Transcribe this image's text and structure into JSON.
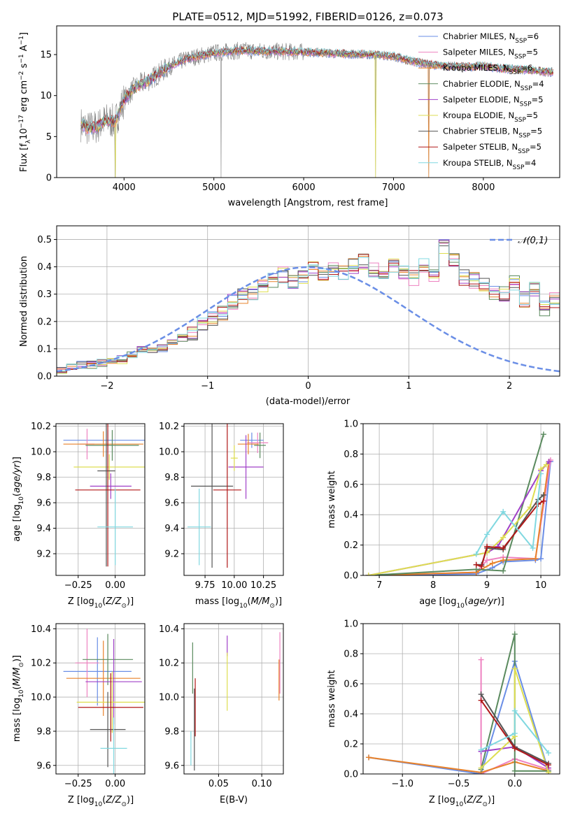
{
  "figure_title": "PLATE=0512, MJD=51992, FIBERID=0126, z=0.073",
  "colors": {
    "Chabrier MILES": "#6a8ee6",
    "Salpeter MILES": "#ee82c0",
    "Kroupa MILES": "#e8822a",
    "Chabrier ELODIE": "#5a8a5e",
    "Salpeter ELODIE": "#a040c8",
    "Kroupa ELODIE": "#dede50",
    "Chabrier STELIB": "#555555",
    "Salpeter STELIB": "#b01818",
    "Kroupa STELIB": "#80d8e0",
    "data": "#808080"
  },
  "chart_data": [
    {
      "type": "line",
      "title": "PLATE=0512, MJD=51992, FIBERID=0126, z=0.073",
      "xlabel": "wavelength [Angstrom, rest frame]",
      "ylabel_parts": [
        "Flux [f",
        "λ",
        "10",
        "−17",
        " erg cm",
        "−2",
        " s",
        "−1",
        " A",
        "−1",
        "]"
      ],
      "xlim": [
        3250,
        8850
      ],
      "ylim": [
        0,
        18.5
      ],
      "xticks": [
        4000,
        5000,
        6000,
        7000,
        8000
      ],
      "yticks": [
        0,
        5,
        10,
        15
      ],
      "grid": false,
      "legend_position": "right",
      "legend": [
        {
          "model": "Chabrier MILES",
          "nssp": "6"
        },
        {
          "model": "Salpeter MILES",
          "nssp": "5"
        },
        {
          "model": "Kroupa MILES",
          "nssp": "6"
        },
        {
          "model": "Chabrier ELODIE",
          "nssp": "4"
        },
        {
          "model": "Salpeter ELODIE",
          "nssp": "5"
        },
        {
          "model": "Kroupa ELODIE",
          "nssp": "5"
        },
        {
          "model": "Chabrier STELIB",
          "nssp": "5"
        },
        {
          "model": "Salpeter STELIB",
          "nssp": "5"
        },
        {
          "model": "Kroupa STELIB",
          "nssp": "4"
        }
      ],
      "continuum": {
        "wavelength": [
          3520,
          3600,
          3700,
          3800,
          3900,
          4000,
          4100,
          4200,
          4300,
          4400,
          4500,
          4700,
          5000,
          5300,
          5600,
          6000,
          6400,
          6800,
          7000,
          7200,
          7400,
          7600,
          7800,
          8000,
          8200,
          8400,
          8600,
          8780
        ],
        "flux": [
          6.5,
          6.0,
          6.2,
          7.0,
          6.8,
          9.5,
          10.8,
          11.5,
          12.0,
          12.8,
          13.5,
          14.5,
          15.2,
          15.5,
          15.4,
          15.3,
          15.1,
          15.0,
          14.8,
          14.2,
          13.8,
          13.6,
          13.5,
          13.6,
          13.3,
          13.2,
          13.0,
          12.8
        ]
      },
      "data_dropouts": [
        3900,
        5080,
        6800,
        7390
      ],
      "model_dropouts": [
        {
          "wavelength": 3900,
          "model": "Kroupa ELODIE"
        },
        {
          "wavelength": 6800,
          "model": "Kroupa ELODIE"
        },
        {
          "wavelength": 7390,
          "model": "Kroupa MILES"
        }
      ]
    },
    {
      "type": "histogram",
      "xlabel": "(data-model)/error",
      "ylabel": "Normed distribution",
      "xlim": [
        -2.5,
        2.5
      ],
      "ylim": [
        0,
        0.55
      ],
      "xticks": [
        -2,
        -1,
        0,
        1,
        2
      ],
      "yticks": [
        0.0,
        0.1,
        0.2,
        0.3,
        0.4,
        0.5
      ],
      "grid": true,
      "legend": "𝒩(0,1)",
      "reference_curve": "normal(0,1)",
      "bin_width": 0.1,
      "bin_start": -2.5,
      "heights": [
        0.02,
        0.03,
        0.04,
        0.04,
        0.05,
        0.05,
        0.06,
        0.08,
        0.1,
        0.09,
        0.1,
        0.12,
        0.14,
        0.16,
        0.19,
        0.21,
        0.23,
        0.27,
        0.29,
        0.3,
        0.33,
        0.35,
        0.37,
        0.34,
        0.36,
        0.39,
        0.37,
        0.39,
        0.38,
        0.4,
        0.42,
        0.39,
        0.38,
        0.4,
        0.38,
        0.36,
        0.4,
        0.37,
        0.47,
        0.42,
        0.36,
        0.35,
        0.33,
        0.31,
        0.3,
        0.34,
        0.28,
        0.32,
        0.25,
        0.28,
        0.24,
        0.22,
        0.2,
        0.18,
        0.17,
        0.13,
        0.12,
        0.1,
        0.09,
        0.1,
        0.08,
        0.07,
        0.06,
        0.05,
        0.05,
        0.04,
        0.03,
        0.03,
        0.02,
        0.02
      ]
    },
    {
      "type": "errorbar",
      "xlabel": "Z [log10(Z/Z⊙)]",
      "ylabel": "age  [log10(age/yr)]",
      "xlim": [
        -0.4,
        0.2
      ],
      "ylim": [
        9.03,
        10.22
      ],
      "xticks": [
        -0.25,
        0.0
      ],
      "xtick_labels": [
        "−0.25",
        "0.00"
      ],
      "yticks": [
        9.2,
        9.4,
        9.6,
        9.8,
        10.0,
        10.2
      ],
      "points": [
        {
          "model": "Chabrier MILES",
          "x": -0.05,
          "xerr": 0.3,
          "y": 10.09,
          "yerr": 0.08
        },
        {
          "model": "Salpeter MILES",
          "x": -0.19,
          "xerr": 0.05,
          "y": 10.06,
          "yerr": 0.12
        },
        {
          "model": "Kroupa MILES",
          "x": -0.08,
          "xerr": 0.27,
          "y": 10.06,
          "yerr": 0.1
        },
        {
          "model": "Chabrier ELODIE",
          "x": -0.02,
          "xerr": 0.18,
          "y": 10.05,
          "yerr": 0.12
        },
        {
          "model": "Salpeter ELODIE",
          "x": -0.03,
          "xerr": 0.14,
          "y": 9.73,
          "yerr": 0.1
        },
        {
          "model": "Kroupa ELODIE",
          "x": -0.04,
          "xerr": 0.24,
          "y": 9.88,
          "yerr": 0.1
        },
        {
          "model": "Chabrier STELIB",
          "x": -0.06,
          "xerr": 0.06,
          "y": 9.85,
          "yerr": 0.75
        },
        {
          "model": "Salpeter STELIB",
          "x": -0.05,
          "xerr": 0.22,
          "y": 9.7,
          "yerr": 0.6
        },
        {
          "model": "Kroupa STELIB",
          "x": 0.0,
          "xerr": 0.12,
          "y": 9.41,
          "yerr": 0.3
        }
      ]
    },
    {
      "type": "errorbar",
      "xlabel": "mass [log10(M/M⊙)]",
      "xlim": [
        9.57,
        10.42
      ],
      "ylim": [
        9.03,
        10.22
      ],
      "xticks": [
        9.75,
        10.0,
        10.25
      ],
      "xtick_labels": [
        "9.75",
        "10.00",
        "10.25"
      ],
      "yticks": [
        9.2,
        9.4,
        9.6,
        9.8,
        10.0,
        10.2
      ],
      "points": [
        {
          "model": "Chabrier MILES",
          "x": 10.15,
          "xerr": 0.1,
          "y": 10.09,
          "yerr": 0.06
        },
        {
          "model": "Salpeter MILES",
          "x": 10.2,
          "xerr": 0.09,
          "y": 10.07,
          "yerr": 0.08
        },
        {
          "model": "Kroupa MILES",
          "x": 10.12,
          "xerr": 0.09,
          "y": 10.06,
          "yerr": 0.08
        },
        {
          "model": "Chabrier ELODIE",
          "x": 10.22,
          "xerr": 0.05,
          "y": 10.05,
          "yerr": 0.1
        },
        {
          "model": "Salpeter ELODIE",
          "x": 10.1,
          "xerr": 0.15,
          "y": 9.88,
          "yerr": 0.25
        },
        {
          "model": "Kroupa ELODIE",
          "x": 10.0,
          "xerr": 0.03,
          "y": 9.95,
          "yerr": 0.1
        },
        {
          "model": "Chabrier STELIB",
          "x": 9.81,
          "xerr": 0.18,
          "y": 9.73,
          "yerr": 0.64
        },
        {
          "model": "Salpeter STELIB",
          "x": 9.94,
          "xerr": 0.12,
          "y": 9.7,
          "yerr": 0.61
        },
        {
          "model": "Kroupa STELIB",
          "x": 9.7,
          "xerr": 0.1,
          "y": 9.41,
          "yerr": 0.3
        }
      ]
    },
    {
      "type": "line",
      "xlabel": "age  [log10(age/yr)]",
      "ylabel": "mass weight",
      "xlim": [
        6.7,
        10.35
      ],
      "ylim": [
        0,
        1.0
      ],
      "xticks": [
        7,
        8,
        9,
        10
      ],
      "yticks": [
        0.0,
        0.2,
        0.4,
        0.6,
        0.8,
        1.0
      ],
      "grid": true,
      "series": [
        {
          "model": "Chabrier MILES",
          "x": [
            6.8,
            8.8,
            9.1,
            9.3,
            9.9,
            10.0,
            10.18
          ],
          "y": [
            0.0,
            0.01,
            0.05,
            0.09,
            0.1,
            0.11,
            0.75
          ]
        },
        {
          "model": "Salpeter MILES",
          "x": [
            6.8,
            8.8,
            9.0,
            9.3,
            9.9,
            10.18
          ],
          "y": [
            0.0,
            0.02,
            0.1,
            0.12,
            0.11,
            0.76
          ]
        },
        {
          "model": "Kroupa MILES",
          "x": [
            6.8,
            8.8,
            9.1,
            9.3,
            9.9,
            10.15
          ],
          "y": [
            0.0,
            0.02,
            0.08,
            0.1,
            0.11,
            0.75
          ]
        },
        {
          "model": "Chabrier ELODIE",
          "x": [
            6.8,
            8.8,
            9.3,
            10.05
          ],
          "y": [
            0.0,
            0.04,
            0.03,
            0.93
          ]
        },
        {
          "model": "Salpeter ELODIE",
          "x": [
            6.8,
            9.0,
            9.2,
            10.0,
            10.15
          ],
          "y": [
            0.0,
            0.15,
            0.19,
            0.69,
            0.75
          ]
        },
        {
          "model": "Kroupa ELODIE",
          "x": [
            6.8,
            9.0,
            9.3,
            9.8,
            10.0,
            10.1
          ],
          "y": [
            0.0,
            0.15,
            0.25,
            0.45,
            0.7,
            0.73
          ]
        },
        {
          "model": "Chabrier STELIB",
          "x": [
            8.8,
            8.9,
            9.0,
            9.3,
            9.95,
            10.05
          ],
          "y": [
            0.07,
            0.07,
            0.18,
            0.17,
            0.5,
            0.53
          ]
        },
        {
          "model": "Salpeter STELIB",
          "x": [
            8.8,
            8.9,
            9.0,
            9.3,
            9.95,
            10.05
          ],
          "y": [
            0.07,
            0.06,
            0.19,
            0.18,
            0.47,
            0.49
          ]
        },
        {
          "model": "Kroupa STELIB",
          "x": [
            8.8,
            9.0,
            9.3,
            9.85,
            10.0
          ],
          "y": [
            0.14,
            0.27,
            0.42,
            0.18,
            0.67
          ]
        }
      ]
    },
    {
      "type": "errorbar",
      "xlabel": "Z [log10(Z/Z⊙)]",
      "ylabel": "mass [log10(M/M⊙)]",
      "xlim": [
        -0.4,
        0.2
      ],
      "ylim": [
        9.55,
        10.43
      ],
      "xticks": [
        -0.25,
        0.0
      ],
      "xtick_labels": [
        "−0.25",
        "0.00"
      ],
      "yticks": [
        9.6,
        9.8,
        10.0,
        10.2,
        10.4
      ],
      "points": [
        {
          "model": "Chabrier MILES",
          "x": -0.12,
          "xerr": 0.23,
          "y": 10.15,
          "yerr": 0.2
        },
        {
          "model": "Salpeter MILES",
          "x": -0.19,
          "xerr": 0.08,
          "y": 10.2,
          "yerr": 0.2
        },
        {
          "model": "Kroupa MILES",
          "x": -0.08,
          "xerr": 0.25,
          "y": 10.11,
          "yerr": 0.22
        },
        {
          "model": "Chabrier ELODIE",
          "x": -0.05,
          "xerr": 0.17,
          "y": 10.22,
          "yerr": 0.15
        },
        {
          "model": "Salpeter ELODIE",
          "x": -0.01,
          "xerr": 0.19,
          "y": 10.09,
          "yerr": 0.25
        },
        {
          "model": "Kroupa ELODIE",
          "x": -0.02,
          "xerr": 0.24,
          "y": 9.97,
          "yerr": 0.18
        },
        {
          "model": "Chabrier STELIB",
          "x": -0.05,
          "xerr": 0.12,
          "y": 9.81,
          "yerr": 0.22
        },
        {
          "model": "Salpeter STELIB",
          "x": -0.03,
          "xerr": 0.22,
          "y": 9.94,
          "yerr": 0.2
        },
        {
          "model": "Kroupa STELIB",
          "x": -0.01,
          "xerr": 0.09,
          "y": 9.7,
          "yerr": 0.18
        }
      ]
    },
    {
      "type": "errorbar",
      "xlabel": "E(B-V)",
      "xlim": [
        0.01,
        0.125
      ],
      "ylim": [
        9.55,
        10.43
      ],
      "xticks": [
        0.05,
        0.1
      ],
      "xtick_labels": [
        "0.05",
        "0.10"
      ],
      "yticks": [
        9.6,
        9.8,
        10.0,
        10.2,
        10.4
      ],
      "points": [
        {
          "model": "Chabrier ELODIE",
          "x": 0.02,
          "xerr": 0,
          "y": 10.17,
          "yerr": 0.15
        },
        {
          "model": "Chabrier STELIB",
          "x": 0.022,
          "xerr": 0,
          "y": 9.81,
          "yerr": 0.24
        },
        {
          "model": "Salpeter STELIB",
          "x": 0.023,
          "xerr": 0,
          "y": 9.94,
          "yerr": 0.17
        },
        {
          "model": "Kroupa STELIB",
          "x": 0.018,
          "xerr": 0,
          "y": 9.7,
          "yerr": 0.1
        },
        {
          "model": "Salpeter ELODIE",
          "x": 0.06,
          "xerr": 0,
          "y": 10.3,
          "yerr": 0.06
        },
        {
          "model": "Kroupa ELODIE",
          "x": 0.06,
          "xerr": 0,
          "y": 10.09,
          "yerr": 0.17
        },
        {
          "model": "Kroupa MILES",
          "x": 0.12,
          "xerr": 0,
          "y": 10.1,
          "yerr": 0.12
        },
        {
          "model": "Salpeter MILES",
          "x": 0.121,
          "xerr": 0,
          "y": 10.2,
          "yerr": 0.18
        }
      ]
    },
    {
      "type": "line",
      "xlabel": "Z [log10(Z/Z⊙)]",
      "ylabel": "mass weight",
      "xlim": [
        -1.35,
        0.4
      ],
      "ylim": [
        0,
        1.0
      ],
      "xticks": [
        -1.0,
        -0.5,
        0.0
      ],
      "xtick_labels": [
        "−1.0",
        "−0.5",
        "0.0"
      ],
      "yticks": [
        0.0,
        0.2,
        0.4,
        0.6,
        0.8,
        1.0
      ],
      "grid": true,
      "series": [
        {
          "model": "Chabrier MILES",
          "x": [
            -1.3,
            -0.3,
            0.0,
            0.3
          ],
          "y": [
            0.11,
            0.0,
            0.75,
            0.02
          ]
        },
        {
          "model": "Salpeter MILES",
          "x": [
            -0.3,
            -0.3,
            0.0,
            0.3
          ],
          "y": [
            0.76,
            0.0,
            0.1,
            0.03
          ]
        },
        {
          "model": "Kroupa MILES",
          "x": [
            -1.3,
            -0.3,
            0.0,
            0.3
          ],
          "y": [
            0.11,
            0.01,
            0.08,
            0.02
          ]
        },
        {
          "model": "Chabrier ELODIE",
          "x": [
            -0.3,
            0.0,
            0.0,
            0.3
          ],
          "y": [
            0.03,
            0.93,
            0.02,
            0.02
          ]
        },
        {
          "model": "Salpeter ELODIE",
          "x": [
            -0.3,
            0.0,
            0.3
          ],
          "y": [
            0.15,
            0.18,
            0.04
          ]
        },
        {
          "model": "Kroupa ELODIE",
          "x": [
            -0.3,
            0.0,
            0.0,
            0.3
          ],
          "y": [
            0.04,
            0.25,
            0.7,
            0.01
          ]
        },
        {
          "model": "Chabrier STELIB",
          "x": [
            -0.3,
            0.0,
            0.3
          ],
          "y": [
            0.53,
            0.18,
            0.07
          ]
        },
        {
          "model": "Salpeter STELIB",
          "x": [
            -0.3,
            0.0,
            0.3
          ],
          "y": [
            0.49,
            0.17,
            0.06
          ]
        },
        {
          "model": "Kroupa STELIB",
          "x": [
            -0.3,
            0.0,
            0.0,
            0.3
          ],
          "y": [
            0.16,
            0.27,
            0.42,
            0.14
          ]
        }
      ]
    }
  ]
}
